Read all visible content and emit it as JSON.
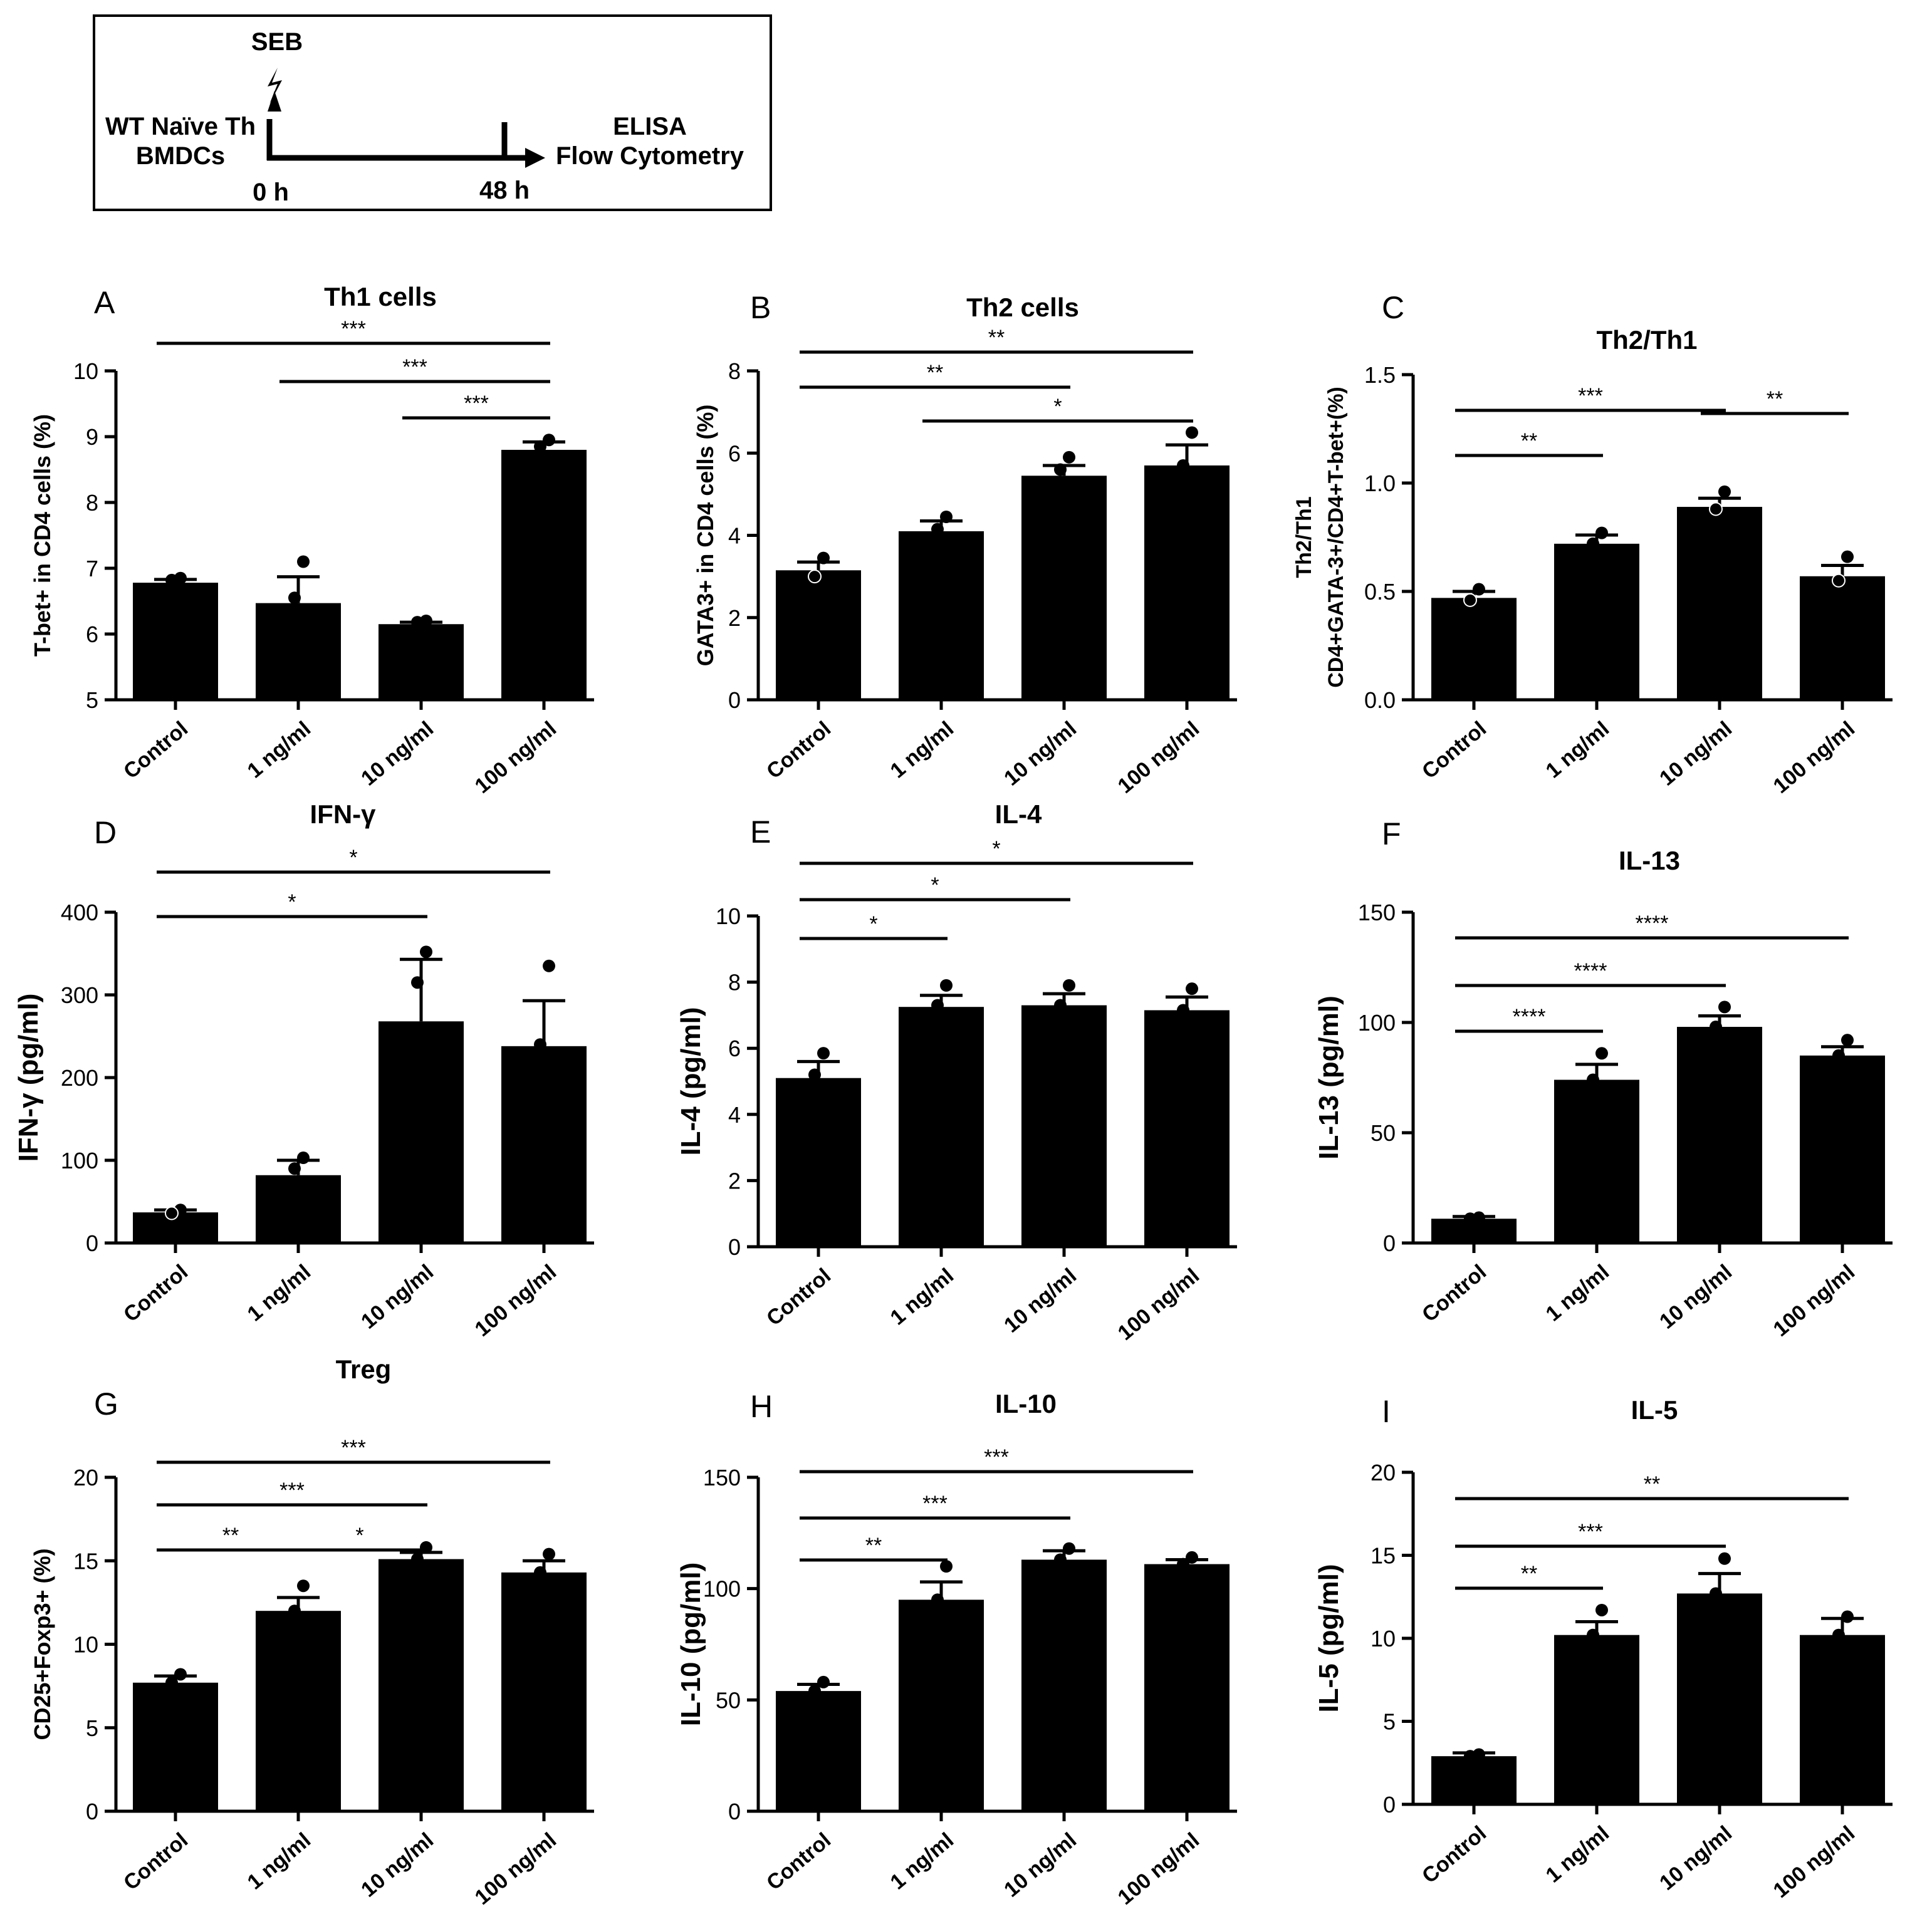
{
  "schematic": {
    "stimulus": "SEB",
    "cells_line1": "WT Naïve Th",
    "cells_line2": "BMDCs",
    "readout_line1": "ELISA",
    "readout_line2": "Flow Cytometry",
    "t_start": "0 h",
    "t_end": "48 h",
    "arrow_icon": "arrow-right-icon",
    "lightning_icon": "lightning-icon"
  },
  "colors": {
    "bar": "#000000",
    "axis": "#000000",
    "background": "#ffffff"
  },
  "chart_data": [
    {
      "id": "A",
      "type": "bar",
      "title": "Th1 cells",
      "ylabel": "T-bet+ in CD4 cells (%)",
      "categories": [
        "Control",
        "1 ng/ml",
        "10 ng/ml",
        "100 ng/ml"
      ],
      "values": [
        6.78,
        6.47,
        6.15,
        8.8
      ],
      "errors": [
        0.05,
        0.4,
        0.03,
        0.12
      ],
      "points": [
        [
          6.85,
          6.82
        ],
        [
          7.1,
          6.55
        ],
        [
          6.2,
          6.18
        ],
        [
          8.95,
          8.85
        ]
      ],
      "ylim": [
        5,
        10
      ],
      "yticks": [
        "5",
        "6",
        "7",
        "8",
        "9",
        "10"
      ],
      "yticksValues": [
        5,
        6,
        7,
        8,
        9,
        10
      ],
      "significance": [
        {
          "from": 0,
          "to": 3,
          "label": "***"
        },
        {
          "from": 1,
          "to": 3,
          "label": "***"
        },
        {
          "from": 2,
          "to": 3,
          "label": "***"
        }
      ]
    },
    {
      "id": "B",
      "type": "bar",
      "title": "Th2 cells",
      "ylabel": "GATA3+ in CD4 cells (%)",
      "categories": [
        "Control",
        "1 ng/ml",
        "10 ng/ml",
        "100 ng/ml"
      ],
      "values": [
        3.15,
        4.1,
        5.45,
        5.7
      ],
      "errors": [
        0.2,
        0.25,
        0.25,
        0.5
      ],
      "points": [
        [
          3.45,
          3.0
        ],
        [
          4.45,
          4.15
        ],
        [
          5.9,
          5.6
        ],
        [
          6.5,
          5.7
        ]
      ],
      "ylim": [
        0,
        8
      ],
      "yticks": [
        "0",
        "2",
        "4",
        "6",
        "8"
      ],
      "yticksValues": [
        0,
        2,
        4,
        6,
        8
      ],
      "significance": [
        {
          "from": 0,
          "to": 3,
          "label": "**"
        },
        {
          "from": 0,
          "to": 2,
          "label": "**"
        },
        {
          "from": 1,
          "to": 3,
          "label": "*"
        }
      ]
    },
    {
      "id": "C",
      "type": "bar",
      "title": "Th2/Th1",
      "ylabel": "Th2/Th1",
      "ylabel2": "CD4+GATA-3+/CD4+T-bet+(%)",
      "categories": [
        "Control",
        "1 ng/ml",
        "10 ng/ml",
        "100 ng/ml"
      ],
      "values": [
        0.47,
        0.72,
        0.89,
        0.57
      ],
      "errors": [
        0.03,
        0.04,
        0.04,
        0.05
      ],
      "points": [
        [
          0.51,
          0.46
        ],
        [
          0.77,
          0.72
        ],
        [
          0.96,
          0.88
        ],
        [
          0.66,
          0.55
        ]
      ],
      "ylim": [
        0,
        1.5
      ],
      "yticks": [
        "0.0",
        "0.5",
        "1.0",
        "1.5"
      ],
      "yticksValues": [
        0,
        0.5,
        1.0,
        1.5
      ],
      "significance": [
        {
          "from": 0,
          "to": 2,
          "label": "***"
        },
        {
          "from": 2,
          "to": 3,
          "label": "**"
        },
        {
          "from": 0,
          "to": 1,
          "label": "**"
        }
      ]
    },
    {
      "id": "D",
      "type": "bar",
      "title": "IFN-γ",
      "ylabel": "IFN-γ (pg/ml)",
      "categories": [
        "Control",
        "1 ng/ml",
        "10 ng/ml",
        "100 ng/ml"
      ],
      "values": [
        37,
        82,
        268,
        238
      ],
      "errors": [
        3,
        18,
        75,
        55
      ],
      "points": [
        [
          40,
          36
        ],
        [
          103,
          90
        ],
        [
          352,
          315
        ],
        [
          335,
          240
        ]
      ],
      "ylim": [
        0,
        400
      ],
      "yticks": [
        "0",
        "100",
        "200",
        "300",
        "400"
      ],
      "yticksValues": [
        0,
        100,
        200,
        300,
        400
      ],
      "significance": [
        {
          "from": 0,
          "to": 3,
          "label": "*"
        },
        {
          "from": 0,
          "to": 2,
          "label": "*"
        }
      ]
    },
    {
      "id": "E",
      "type": "bar",
      "title": "IL-4",
      "ylabel": "IL-4 (pg/ml)",
      "categories": [
        "Control",
        "1 ng/ml",
        "10 ng/ml",
        "100 ng/ml"
      ],
      "values": [
        5.1,
        7.25,
        7.3,
        7.15
      ],
      "errors": [
        0.5,
        0.35,
        0.35,
        0.4
      ],
      "points": [
        [
          5.85,
          5.2
        ],
        [
          7.9,
          7.3
        ],
        [
          7.9,
          7.3
        ],
        [
          7.8,
          7.15
        ]
      ],
      "ylim": [
        0,
        10
      ],
      "yticks": [
        "0",
        "2",
        "4",
        "6",
        "8",
        "10"
      ],
      "yticksValues": [
        0,
        2,
        4,
        6,
        8,
        10
      ],
      "significance": [
        {
          "from": 0,
          "to": 3,
          "label": "*"
        },
        {
          "from": 0,
          "to": 2,
          "label": "*"
        },
        {
          "from": 0,
          "to": 1,
          "label": "*"
        }
      ]
    },
    {
      "id": "F",
      "type": "bar",
      "title": "IL-13",
      "ylabel": "IL-13 (pg/ml)",
      "categories": [
        "Control",
        "1 ng/ml",
        "10 ng/ml",
        "100 ng/ml"
      ],
      "values": [
        11,
        74,
        98,
        85
      ],
      "errors": [
        1,
        7,
        5,
        4
      ],
      "points": [
        [
          11.5,
          11
        ],
        [
          86,
          74
        ],
        [
          107,
          98
        ],
        [
          92,
          85
        ]
      ],
      "ylim": [
        0,
        150
      ],
      "yticks": [
        "0",
        "50",
        "100",
        "150"
      ],
      "yticksValues": [
        0,
        50,
        100,
        150
      ],
      "significance": [
        {
          "from": 0,
          "to": 3,
          "label": "****"
        },
        {
          "from": 0,
          "to": 2,
          "label": "****"
        },
        {
          "from": 0,
          "to": 1,
          "label": "****"
        }
      ]
    },
    {
      "id": "G",
      "type": "bar",
      "title": "Treg",
      "ylabel": "CD25+Foxp3+ (%)",
      "categories": [
        "Control",
        "1 ng/ml",
        "10 ng/ml",
        "100 ng/ml"
      ],
      "values": [
        7.7,
        12.0,
        15.1,
        14.3
      ],
      "errors": [
        0.4,
        0.8,
        0.4,
        0.7
      ],
      "points": [
        [
          8.2,
          7.7
        ],
        [
          13.5,
          12.0
        ],
        [
          15.8,
          15.1
        ],
        [
          15.4,
          14.3
        ]
      ],
      "ylim": [
        0,
        20
      ],
      "yticks": [
        "0",
        "5",
        "10",
        "15",
        "20"
      ],
      "yticksValues": [
        0,
        5,
        10,
        15,
        20
      ],
      "significance": [
        {
          "from": 0,
          "to": 3,
          "label": "***"
        },
        {
          "from": 0,
          "to": 2,
          "label": "***"
        },
        {
          "from": 0,
          "to": 1,
          "label": "**"
        },
        {
          "from": 1,
          "to": 2,
          "label": "*"
        }
      ]
    },
    {
      "id": "H",
      "type": "bar",
      "title": "IL-10",
      "ylabel": "IL-10 (pg/ml)",
      "categories": [
        "Control",
        "1 ng/ml",
        "10 ng/ml",
        "100 ng/ml"
      ],
      "values": [
        54,
        95,
        113,
        111
      ],
      "errors": [
        3,
        8,
        4,
        2
      ],
      "points": [
        [
          58,
          54
        ],
        [
          110,
          95
        ],
        [
          118,
          113
        ],
        [
          114,
          111
        ]
      ],
      "ylim": [
        0,
        150
      ],
      "yticks": [
        "0",
        "50",
        "100",
        "150"
      ],
      "yticksValues": [
        0,
        50,
        100,
        150
      ],
      "significance": [
        {
          "from": 0,
          "to": 3,
          "label": "***"
        },
        {
          "from": 0,
          "to": 2,
          "label": "***"
        },
        {
          "from": 0,
          "to": 1,
          "label": "**"
        }
      ]
    },
    {
      "id": "I",
      "type": "bar",
      "title": "IL-5",
      "ylabel": "IL-5 (pg/ml)",
      "categories": [
        "Control",
        "1 ng/ml",
        "10 ng/ml",
        "100 ng/ml"
      ],
      "values": [
        2.9,
        10.2,
        12.7,
        10.2
      ],
      "errors": [
        0.2,
        0.8,
        1.2,
        1.0
      ],
      "points": [
        [
          3.0,
          2.9
        ],
        [
          11.7,
          10.2
        ],
        [
          14.8,
          12.7
        ],
        [
          11.3,
          10.2
        ]
      ],
      "ylim": [
        0,
        20
      ],
      "yticks": [
        "0",
        "5",
        "10",
        "15",
        "20"
      ],
      "yticksValues": [
        0,
        5,
        10,
        15,
        20
      ],
      "significance": [
        {
          "from": 0,
          "to": 3,
          "label": "**"
        },
        {
          "from": 0,
          "to": 2,
          "label": "***"
        },
        {
          "from": 0,
          "to": 1,
          "label": "**"
        }
      ]
    }
  ]
}
